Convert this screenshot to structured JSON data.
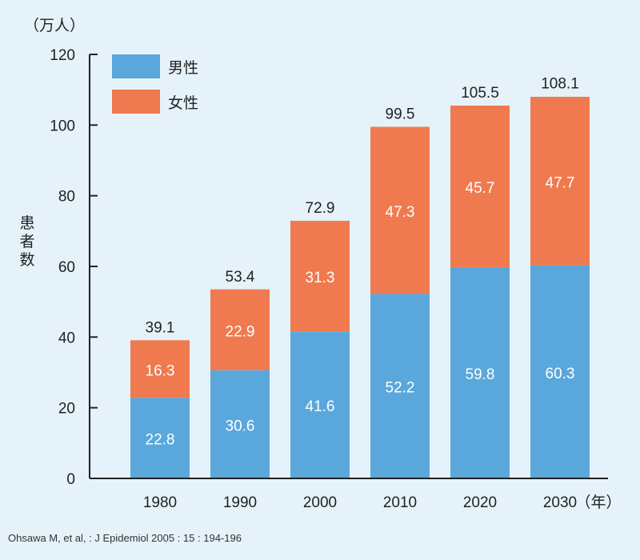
{
  "chart_data": {
    "type": "bar",
    "stacked": true,
    "categories": [
      "1980",
      "1990",
      "2000",
      "2010",
      "2020",
      "2030"
    ],
    "series": [
      {
        "name": "男性",
        "color": "#5aa7dc",
        "values": [
          22.8,
          30.6,
          41.6,
          52.2,
          59.8,
          60.3
        ]
      },
      {
        "name": "女性",
        "color": "#ef7a4f",
        "values": [
          16.3,
          22.9,
          31.3,
          47.3,
          45.7,
          47.7
        ]
      }
    ],
    "totals": [
      "39.1",
      "53.4",
      "72.9",
      "99.5",
      "105.5",
      "108.1"
    ],
    "unit_label": "（万人）",
    "ylabel": "患者数",
    "x_unit": "（年）",
    "ylim": [
      0,
      120
    ],
    "yticks": [
      0,
      20,
      40,
      60,
      80,
      100,
      120
    ],
    "legend_position": "top-left"
  },
  "source": "Ohsawa M, et al, : J Epidemiol 2005 : 15 : 194-196"
}
